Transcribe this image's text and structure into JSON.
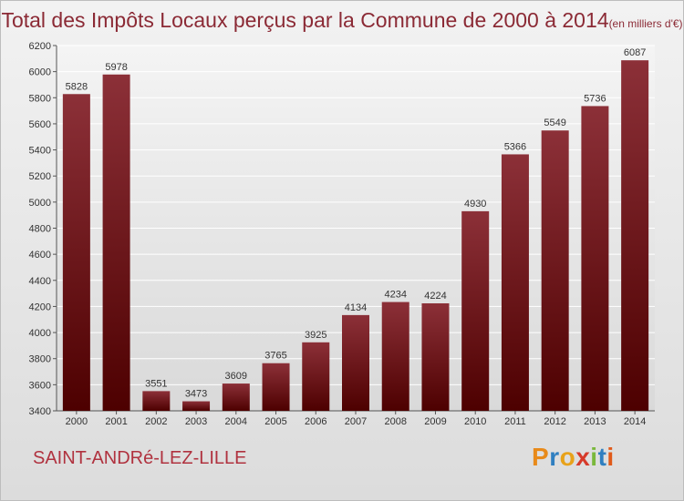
{
  "page": {
    "title": "Total des Impôts Locaux perçus par la Commune de 2000 à 2014",
    "unit": "(en milliers d'€)",
    "commune": "SAINT-ANDRé-LEZ-LILLE",
    "logo": {
      "text": "Proxiti",
      "letter_colors": [
        "#e88a1a",
        "#2f7fc0",
        "#e8a21a",
        "#d63a2a",
        "#7ab83c",
        "#2f7fc0",
        "#e05a1a"
      ]
    }
  },
  "colors": {
    "title": "#8b2a35",
    "bar_top": "#8c3038",
    "bar_bottom": "#4d0000",
    "commune": "#b0323f"
  },
  "chart_data": {
    "type": "bar",
    "title": "Total des Impôts Locaux perçus par la Commune de 2000 à 2014",
    "categories": [
      "2000",
      "2001",
      "2002",
      "2003",
      "2004",
      "2005",
      "2006",
      "2007",
      "2008",
      "2009",
      "2010",
      "2011",
      "2012",
      "2013",
      "2014"
    ],
    "values": [
      5828,
      5978,
      3551,
      3473,
      3609,
      3765,
      3925,
      4134,
      4234,
      4224,
      4930,
      5366,
      5549,
      5736,
      6087
    ],
    "value_labels": [
      "5828",
      "5978",
      "3551",
      "3473",
      "3609",
      "3765",
      "3925",
      "4134",
      "4234",
      "4224",
      "4930",
      "5366",
      "5549",
      "5736",
      "6087"
    ],
    "ylim": [
      3400,
      6200
    ],
    "yticks": [
      "3400",
      "3600",
      "3800",
      "4000",
      "4200",
      "4400",
      "4600",
      "4800",
      "5000",
      "5200",
      "5400",
      "5600",
      "5800",
      "6000",
      "6200"
    ],
    "grid": true
  }
}
